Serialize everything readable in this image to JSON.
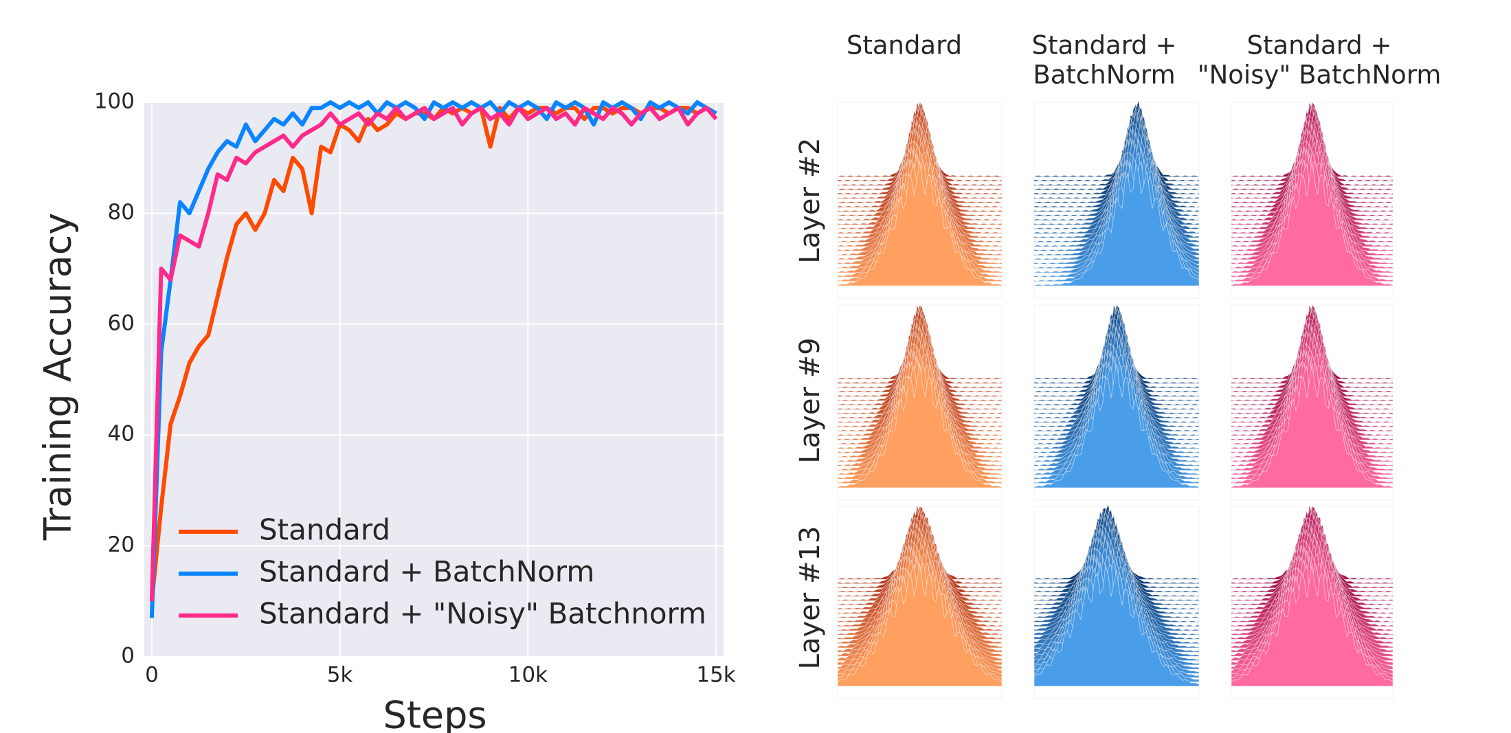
{
  "chart_data": {
    "type": "line",
    "ylabel": "Training Accuracy",
    "xlabel": "Steps",
    "x": [
      0,
      250,
      500,
      750,
      1000,
      1250,
      1500,
      1750,
      2000,
      2250,
      2500,
      2750,
      3000,
      3250,
      3500,
      3750,
      4000,
      4250,
      4500,
      4750,
      5000,
      5250,
      5500,
      5750,
      6000,
      6250,
      6500,
      6750,
      7000,
      7250,
      7500,
      7750,
      8000,
      8250,
      8500,
      8750,
      9000,
      9250,
      9500,
      9750,
      10000,
      10250,
      10500,
      10750,
      11000,
      11250,
      11500,
      11750,
      12000,
      12250,
      12500,
      12750,
      13000,
      13250,
      13500,
      13750,
      14000,
      14250,
      14500,
      14750,
      15000
    ],
    "series": [
      {
        "name": "Standard",
        "color": "#ff4a00",
        "values": [
          10,
          27,
          42,
          47,
          53,
          56,
          58,
          65,
          72,
          78,
          80,
          77,
          80,
          86,
          84,
          90,
          88,
          80,
          92,
          91,
          96,
          95,
          93,
          97,
          95,
          96,
          98,
          97,
          98,
          98,
          97,
          99,
          98,
          99,
          98,
          99,
          92,
          99,
          97,
          99,
          98,
          99,
          99,
          98,
          99,
          99,
          97,
          99,
          99,
          98,
          99,
          99,
          98,
          99,
          99,
          98,
          99,
          99,
          98,
          99,
          98
        ]
      },
      {
        "name": "Standard + BatchNorm",
        "color": "#0a84ff",
        "values": [
          7,
          55,
          68,
          82,
          80,
          84,
          88,
          91,
          93,
          92,
          96,
          93,
          95,
          97,
          96,
          98,
          96,
          99,
          99,
          100,
          99,
          100,
          99,
          100,
          98,
          100,
          99,
          100,
          99,
          97,
          100,
          99,
          100,
          99,
          100,
          99,
          100,
          98,
          100,
          99,
          100,
          99,
          97,
          100,
          99,
          100,
          99,
          96,
          100,
          99,
          100,
          99,
          97,
          100,
          99,
          100,
          99,
          98,
          100,
          99,
          98
        ]
      },
      {
        "name": "Standard + \"Noisy\" Batchnorm",
        "color": "#ff2a8a",
        "values": [
          10,
          70,
          68,
          76,
          75,
          74,
          80,
          87,
          86,
          90,
          89,
          91,
          92,
          93,
          94,
          92,
          94,
          95,
          96,
          98,
          96,
          97,
          98,
          96,
          98,
          97,
          99,
          97,
          98,
          99,
          97,
          98,
          99,
          96,
          98,
          99,
          97,
          98,
          96,
          99,
          97,
          98,
          99,
          97,
          98,
          96,
          99,
          98,
          97,
          99,
          98,
          96,
          98,
          99,
          97,
          98,
          99,
          96,
          98,
          99,
          97
        ]
      }
    ],
    "xlim": [
      -200,
      15200
    ],
    "ylim": [
      0,
      100
    ],
    "xticks": [
      0,
      {
        "value": 5000,
        "label": "5k"
      },
      {
        "value": 10000,
        "label": "10k"
      },
      {
        "value": 15000,
        "label": "15k"
      }
    ],
    "yticks": [
      0,
      20,
      40,
      60,
      80,
      100
    ],
    "grid": true,
    "legend": "lower left"
  },
  "panels": {
    "columns": [
      [
        "Standard"
      ],
      [
        "Standard +",
        "BatchNorm"
      ],
      [
        "Standard +",
        "\"Noisy\" BatchNorm"
      ]
    ],
    "rows": [
      "Layer #2",
      "Layer #9",
      "Layer #13"
    ]
  }
}
